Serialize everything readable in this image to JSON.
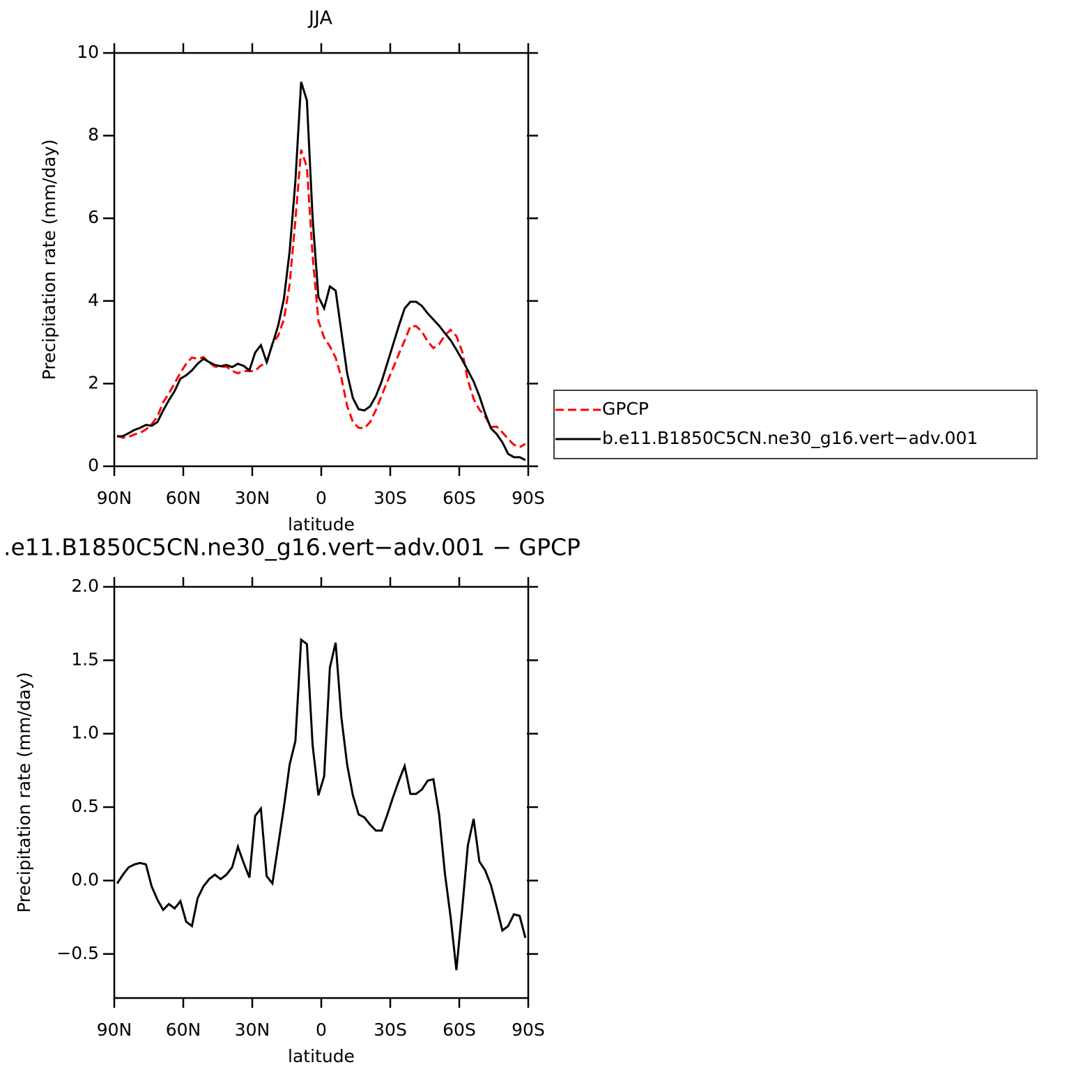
{
  "chart_data": [
    {
      "type": "line",
      "title": "JJA",
      "xlabel": "latitude",
      "ylabel": "Precipitation rate (mm/day)",
      "x": [
        88.75,
        86.25,
        83.75,
        81.25,
        78.75,
        76.25,
        73.75,
        71.25,
        68.75,
        66.25,
        63.75,
        61.25,
        58.75,
        56.25,
        53.75,
        51.25,
        48.75,
        46.25,
        43.75,
        41.25,
        38.75,
        36.25,
        33.75,
        31.25,
        28.75,
        26.25,
        23.75,
        21.25,
        18.75,
        16.25,
        13.75,
        11.25,
        8.75,
        6.25,
        3.75,
        1.25,
        -1.25,
        -3.75,
        -6.25,
        -8.75,
        -11.25,
        -13.75,
        -16.25,
        -18.75,
        -21.25,
        -23.75,
        -26.25,
        -28.75,
        -31.25,
        -33.75,
        -36.25,
        -38.75,
        -41.25,
        -43.75,
        -46.25,
        -48.75,
        -51.25,
        -53.75,
        -56.25,
        -58.75,
        -61.25,
        -63.75,
        -66.25,
        -68.75,
        -71.25,
        -73.75,
        -76.25,
        -78.75,
        -81.25,
        -83.75,
        -86.25,
        -88.75
      ],
      "xlim": [
        90,
        -90
      ],
      "xticks": [
        {
          "value": 90,
          "label": "90N"
        },
        {
          "value": 60,
          "label": "60N"
        },
        {
          "value": 30,
          "label": "30N"
        },
        0,
        {
          "value": -30,
          "label": "30S"
        },
        {
          "value": -60,
          "label": "60S"
        },
        {
          "value": -90,
          "label": "90S"
        }
      ],
      "ylim": [
        0,
        10
      ],
      "yticks": [
        0,
        2,
        4,
        6,
        8,
        10
      ],
      "legend": "outside right",
      "series": [
        {
          "name": "GPCP",
          "color": "#ff0000",
          "dash": "dashed",
          "values": [
            0.74,
            0.69,
            0.71,
            0.77,
            0.81,
            0.89,
            1.02,
            1.2,
            1.55,
            1.76,
            2.01,
            2.26,
            2.48,
            2.63,
            2.6,
            2.64,
            2.51,
            2.41,
            2.41,
            2.41,
            2.31,
            2.25,
            2.31,
            2.3,
            2.31,
            2.44,
            2.49,
            2.97,
            3.16,
            3.55,
            4.41,
            5.95,
            7.66,
            7.24,
            5.08,
            3.52,
            3.11,
            2.9,
            2.63,
            2.14,
            1.46,
            1.07,
            0.93,
            0.92,
            1.07,
            1.36,
            1.71,
            2.05,
            2.38,
            2.72,
            3.04,
            3.39,
            3.39,
            3.26,
            3.02,
            2.86,
            2.95,
            3.17,
            3.3,
            3.15,
            2.78,
            2.08,
            1.63,
            1.37,
            1.21,
            0.95,
            0.96,
            0.82,
            0.66,
            0.52,
            0.46,
            0.54
          ]
        },
        {
          "name": "b.e11.B1850C5CN.ne30_g16.vert−adv.001",
          "color": "#000000",
          "dash": "solid",
          "values": [
            0.72,
            0.73,
            0.8,
            0.88,
            0.93,
            1.0,
            0.98,
            1.07,
            1.35,
            1.6,
            1.82,
            2.12,
            2.2,
            2.32,
            2.48,
            2.6,
            2.52,
            2.45,
            2.42,
            2.45,
            2.4,
            2.48,
            2.43,
            2.32,
            2.75,
            2.93,
            2.52,
            2.95,
            3.4,
            4.05,
            5.2,
            6.9,
            9.3,
            8.85,
            6.0,
            4.1,
            3.82,
            4.35,
            4.25,
            3.25,
            2.25,
            1.65,
            1.38,
            1.35,
            1.45,
            1.7,
            2.05,
            2.5,
            2.95,
            3.4,
            3.82,
            3.98,
            3.98,
            3.88,
            3.7,
            3.55,
            3.4,
            3.22,
            3.05,
            2.82,
            2.58,
            2.32,
            2.05,
            1.7,
            1.28,
            0.92,
            0.78,
            0.58,
            0.3,
            0.22,
            0.22,
            0.15
          ]
        }
      ]
    },
    {
      "type": "line",
      "title": ".e11.B1850C5CN.ne30_g16.vert−adv.001  −  GPCP",
      "xlabel": "latitude",
      "ylabel": "Precipitation rate (mm/day)",
      "x": [
        88.75,
        86.25,
        83.75,
        81.25,
        78.75,
        76.25,
        73.75,
        71.25,
        68.75,
        66.25,
        63.75,
        61.25,
        58.75,
        56.25,
        53.75,
        51.25,
        48.75,
        46.25,
        43.75,
        41.25,
        38.75,
        36.25,
        33.75,
        31.25,
        28.75,
        26.25,
        23.75,
        21.25,
        18.75,
        16.25,
        13.75,
        11.25,
        8.75,
        6.25,
        3.75,
        1.25,
        -1.25,
        -3.75,
        -6.25,
        -8.75,
        -11.25,
        -13.75,
        -16.25,
        -18.75,
        -21.25,
        -23.75,
        -26.25,
        -28.75,
        -31.25,
        -33.75,
        -36.25,
        -38.75,
        -41.25,
        -43.75,
        -46.25,
        -48.75,
        -51.25,
        -53.75,
        -56.25,
        -58.75,
        -61.25,
        -63.75,
        -66.25,
        -68.75,
        -71.25,
        -73.75,
        -76.25,
        -78.75,
        -81.25,
        -83.75,
        -86.25,
        -88.75
      ],
      "xlim": [
        90,
        -90
      ],
      "xticks": [
        {
          "value": 90,
          "label": "90N"
        },
        {
          "value": 60,
          "label": "60N"
        },
        {
          "value": 30,
          "label": "30N"
        },
        0,
        {
          "value": -30,
          "label": "30S"
        },
        {
          "value": -60,
          "label": "60S"
        },
        {
          "value": -90,
          "label": "90S"
        }
      ],
      "ylim": [
        -0.8,
        2.0
      ],
      "yticks": [
        {
          "value": -0.5,
          "label": "−0.5"
        },
        {
          "value": 0,
          "label": "0.0"
        },
        0.5,
        {
          "value": 1,
          "label": "1.0"
        },
        1.5,
        {
          "value": 2,
          "label": "2.0"
        }
      ],
      "color": "#000000",
      "values": [
        -0.02,
        0.04,
        0.09,
        0.11,
        0.12,
        0.11,
        -0.04,
        -0.13,
        -0.2,
        -0.16,
        -0.19,
        -0.14,
        -0.28,
        -0.31,
        -0.12,
        -0.04,
        0.01,
        0.04,
        0.01,
        0.04,
        0.09,
        0.23,
        0.12,
        0.02,
        0.44,
        0.49,
        0.03,
        -0.02,
        0.24,
        0.5,
        0.79,
        0.95,
        1.64,
        1.61,
        0.92,
        0.58,
        0.71,
        1.45,
        1.62,
        1.11,
        0.79,
        0.58,
        0.45,
        0.43,
        0.38,
        0.34,
        0.34,
        0.45,
        0.57,
        0.68,
        0.78,
        0.59,
        0.59,
        0.62,
        0.68,
        0.69,
        0.45,
        0.05,
        -0.25,
        -0.61,
        -0.2,
        0.24,
        0.42,
        0.13,
        0.07,
        -0.03,
        -0.18,
        -0.34,
        -0.31,
        -0.23,
        -0.24,
        -0.39
      ]
    }
  ]
}
